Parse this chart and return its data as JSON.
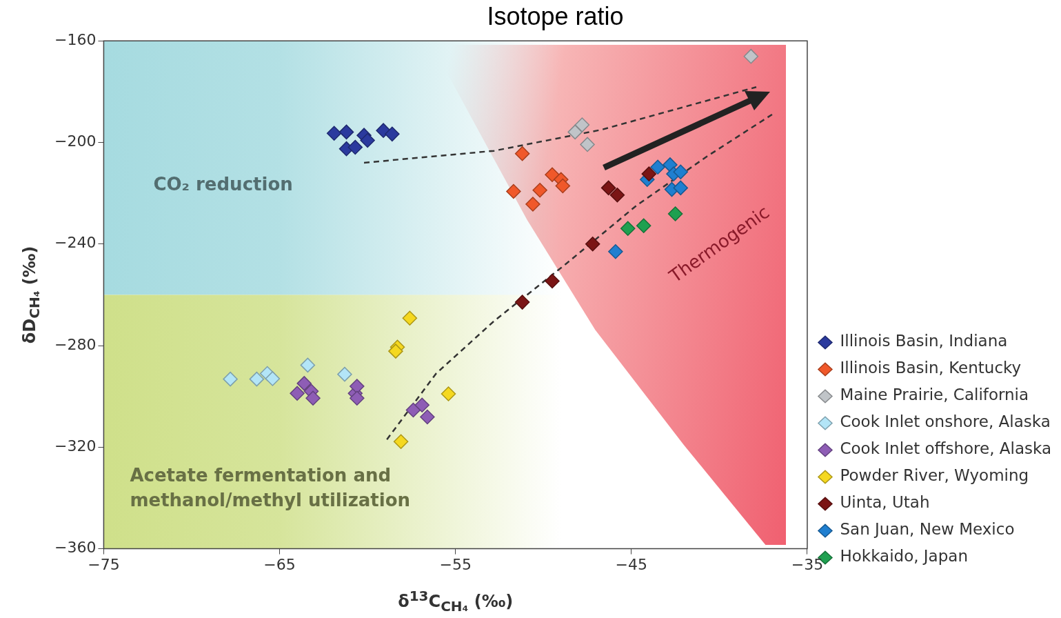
{
  "chart_data": {
    "type": "scatter",
    "title": "Isotope ratio",
    "xlabel": "δ$^{13}$C$_{CH₄}$ (‰)",
    "ylabel": "δD$_{CH₄}$ (‰)",
    "xlim": [
      -75,
      -35
    ],
    "xticks": [
      -75,
      -65,
      -55,
      -45,
      -35
    ],
    "ylim": [
      -360,
      -160
    ],
    "yticks": [
      -360,
      -320,
      -280,
      -240,
      -200,
      -160
    ],
    "grid": false,
    "legend": "bottom right",
    "marker": "diamond",
    "bands": [
      {
        "axis": "y",
        "from": -260,
        "to": -160,
        "label": "CO₂ reduction",
        "color": "#a6dbe0"
      },
      {
        "axis": "y",
        "from": -360,
        "to": -260,
        "label": "Acetate fermentation and methanol/methyl utilization",
        "color": "#cfe08a"
      }
    ],
    "annotations": [
      "Thermogenic"
    ],
    "series": [
      {
        "name": "Illinois Basin, Indiana",
        "color": "#2b3a9e",
        "x": [
          -61.9,
          -61.2,
          -61.2,
          -60.7,
          -60.2,
          -60.0,
          -59.1,
          -58.6
        ],
        "values": [
          -196.4,
          -195.9,
          -202.5,
          -201.9,
          -197.2,
          -199.2,
          -195.3,
          -196.7
        ]
      },
      {
        "name": "Illinois Basin, Kentucky",
        "color": "#f0582a",
        "x": [
          -51.2,
          -51.7,
          -50.6,
          -50.2,
          -49.5,
          -49.0,
          -48.9
        ],
        "values": [
          -204.4,
          -219.3,
          -224.3,
          -218.8,
          -212.7,
          -214.6,
          -217.1
        ]
      },
      {
        "name": "Maine Prairie, California",
        "color": "#c0c4c8",
        "x": [
          -48.2,
          -47.8,
          -47.5,
          -38.2
        ],
        "values": [
          -195.9,
          -193.1,
          -200.8,
          -166.1
        ]
      },
      {
        "name": "Cook Inlet onshore, Alaska",
        "color": "#b3e5f7",
        "x": [
          -67.8,
          -66.3,
          -65.7,
          -65.4,
          -63.4,
          -61.3
        ],
        "values": [
          -293.2,
          -293.2,
          -291.0,
          -293.0,
          -287.7,
          -291.3
        ]
      },
      {
        "name": "Cook Inlet offshore, Alaska",
        "color": "#8e5db5",
        "x": [
          -64.0,
          -63.6,
          -63.2,
          -63.1,
          -60.7,
          -60.6,
          -60.6,
          -57.4,
          -56.9,
          -56.6
        ],
        "values": [
          -298.8,
          -294.9,
          -298.0,
          -300.7,
          -298.8,
          -296.0,
          -300.7,
          -305.4,
          -303.4,
          -308.1
        ]
      },
      {
        "name": "Powder River, Wyoming",
        "color": "#f5d820",
        "x": [
          -57.6,
          -58.3,
          -58.4,
          -55.4,
          -58.1
        ],
        "values": [
          -269.2,
          -280.6,
          -282.2,
          -299.0,
          -317.8
        ]
      },
      {
        "name": "Uinta, Utah",
        "color": "#7b1515",
        "x": [
          -46.3,
          -45.8,
          -47.2,
          -49.5,
          -51.2,
          -44.0
        ],
        "values": [
          -217.9,
          -220.7,
          -240.0,
          -254.6,
          -262.9,
          -212.4
        ]
      },
      {
        "name": "San Juan, New Mexico",
        "color": "#1f7fd0",
        "x": [
          -44.1,
          -43.5,
          -42.8,
          -42.6,
          -42.2,
          -42.7,
          -42.2,
          -45.9
        ],
        "values": [
          -214.6,
          -209.7,
          -208.8,
          -212.4,
          -211.6,
          -218.5,
          -217.9,
          -243.0
        ]
      },
      {
        "name": "Hokkaido, Japan",
        "color": "#1fa050",
        "x": [
          -45.2,
          -44.3,
          -42.5
        ],
        "values": [
          -233.9,
          -232.8,
          -228.1
        ]
      },
      {
        "type": "line",
        "line_style": "dashed",
        "marker": "none",
        "color": "#333333",
        "x": [
          -60.2,
          -52.8,
          -46.7,
          -37.9
        ],
        "values": [
          -208.0,
          -203.3,
          -195.0,
          -178.2
        ]
      },
      {
        "type": "line",
        "line_style": "dashed",
        "marker": "none",
        "color": "#333333",
        "x": [
          -58.9,
          -56.1,
          -52.8,
          -48.8,
          -44.7,
          -40.7,
          -37.0
        ],
        "values": [
          -317.0,
          -291.0,
          -270.3,
          -248.3,
          -224.8,
          -205.5,
          -189.0
        ]
      }
    ]
  }
}
